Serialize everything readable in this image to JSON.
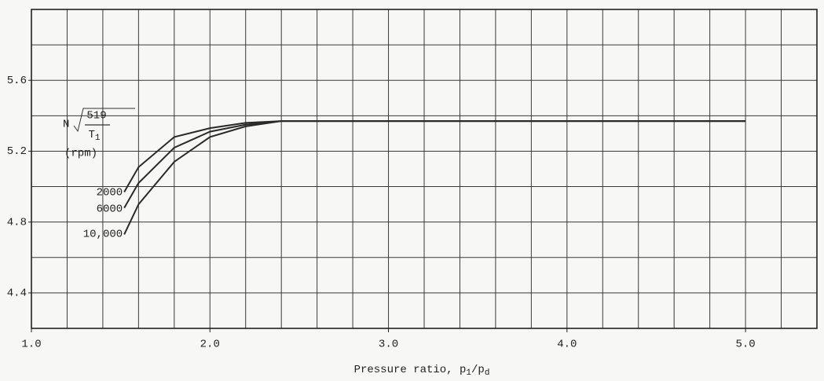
{
  "chart_data": {
    "type": "line",
    "x": [
      1.52,
      1.6,
      1.8,
      2.0,
      2.2,
      2.4,
      5.0
    ],
    "series": [
      {
        "name": "2000",
        "color": "#2a2a2a",
        "values": [
          4.97,
          5.11,
          5.28,
          5.33,
          5.36,
          5.37,
          5.37
        ]
      },
      {
        "name": "6000",
        "color": "#2a2a2a",
        "values": [
          4.88,
          5.02,
          5.22,
          5.31,
          5.35,
          5.37,
          5.37
        ]
      },
      {
        "name": "10,000",
        "color": "#2a2a2a",
        "values": [
          4.73,
          4.9,
          5.14,
          5.28,
          5.34,
          5.37,
          5.37
        ]
      }
    ],
    "legend_title": {
      "symbol": "N",
      "numerator": "519",
      "denominator": "T",
      "denominator_subscript": "1",
      "unit": "(rpm)"
    },
    "xlabel": [
      "Pressure ratio, p",
      "1",
      "/p",
      "d"
    ],
    "xlim": [
      1.0,
      5.4
    ],
    "ylim": [
      4.2,
      6.0
    ],
    "xticks": [
      {
        "value": 1,
        "label": "1.0"
      },
      {
        "value": 2,
        "label": "2.0"
      },
      {
        "value": 3,
        "label": "3.0"
      },
      {
        "value": 4,
        "label": "4.0"
      },
      {
        "value": 5,
        "label": "5.0"
      }
    ],
    "yticks": [
      4.4,
      4.8,
      5.2,
      5.6
    ],
    "xgrid": [
      1.2,
      1.4,
      1.6,
      1.8,
      2.0,
      2.2,
      2.4,
      2.6,
      2.8,
      3.0,
      3.2,
      3.4,
      3.6,
      3.8,
      4.0,
      4.2,
      4.4,
      4.6,
      4.8,
      5.0,
      5.2
    ],
    "ygrid": [
      4.4,
      4.6,
      4.8,
      5.0,
      5.2,
      5.4,
      5.6,
      5.8
    ],
    "grid": true
  }
}
